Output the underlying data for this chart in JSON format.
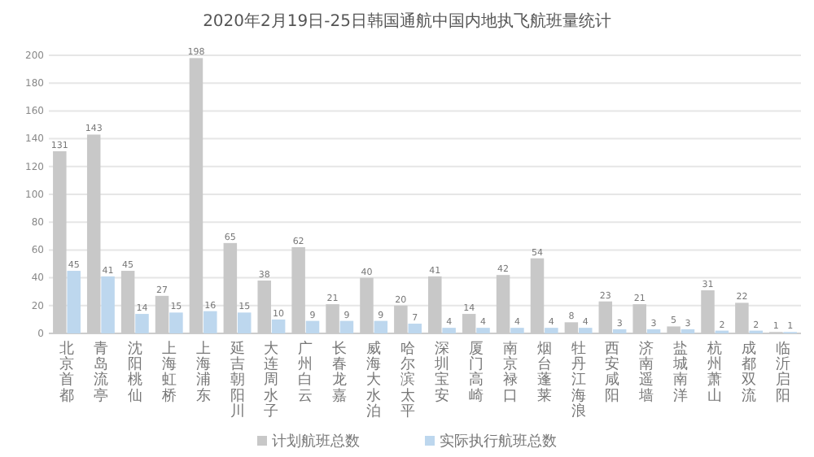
{
  "chart_data": {
    "type": "bar",
    "title": "2020年2月19日-25日韩国通航中国内地执飞航班量统计",
    "categories": [
      "北京首都",
      "青岛流亭",
      "沈阳桃仙",
      "上海虹桥",
      "上海浦东",
      "延吉朝阳川",
      "大连周水子",
      "广州白云",
      "长春龙嘉",
      "威海大水泊",
      "哈尔滨太平",
      "深圳宝安",
      "厦门高崎",
      "南京禄口",
      "烟台蓬莱",
      "牡丹江海浪",
      "西安咸阳",
      "济南遥墙",
      "盐城南洋",
      "杭州萧山",
      "成都双流",
      "临沂启阳"
    ],
    "series": [
      {
        "name": "计划航班总数",
        "color": "#c8c8c8",
        "values": [
          131,
          143,
          45,
          27,
          198,
          65,
          38,
          62,
          21,
          40,
          20,
          41,
          14,
          42,
          54,
          8,
          23,
          21,
          5,
          31,
          22,
          1
        ]
      },
      {
        "name": "实际执行航班总数",
        "color": "#bdd7ee",
        "values": [
          45,
          41,
          14,
          15,
          16,
          15,
          10,
          9,
          9,
          9,
          7,
          4,
          4,
          4,
          4,
          4,
          3,
          3,
          3,
          2,
          2,
          1
        ]
      }
    ],
    "ylim": [
      0,
      200
    ],
    "yticks": [
      0,
      20,
      40,
      60,
      80,
      100,
      120,
      140,
      160,
      180,
      200
    ],
    "grid": "y",
    "legend": "bottom",
    "data_labels": true
  }
}
